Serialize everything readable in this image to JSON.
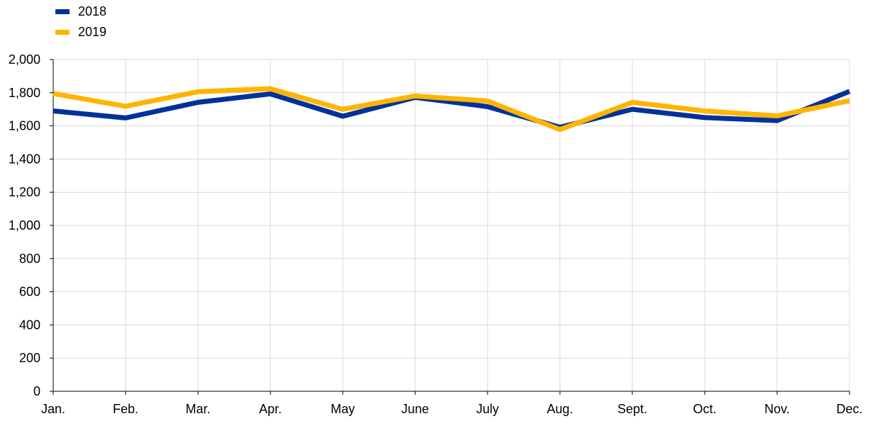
{
  "chart_data": {
    "type": "line",
    "title": "",
    "xlabel": "",
    "ylabel": "",
    "categories": [
      "Jan.",
      "Feb.",
      "Mar.",
      "Apr.",
      "May",
      "June",
      "July",
      "Aug.",
      "Sept.",
      "Oct.",
      "Nov.",
      "Dec."
    ],
    "ylim": [
      0,
      2000
    ],
    "yticks": [
      0,
      200,
      400,
      600,
      800,
      1000,
      1200,
      1400,
      1600,
      1800,
      2000
    ],
    "ytick_labels": [
      "0",
      "200",
      "400",
      "600",
      "800",
      "1,000",
      "1,200",
      "1,400",
      "1,600",
      "1,800",
      "2,000"
    ],
    "grid": true,
    "legend_position": "top-left",
    "series": [
      {
        "name": "2018",
        "color": "#003299",
        "values": [
          1690,
          1648,
          1742,
          1793,
          1658,
          1772,
          1716,
          1592,
          1700,
          1650,
          1632,
          1808
        ]
      },
      {
        "name": "2019",
        "color": "#FFB400",
        "values": [
          1795,
          1718,
          1806,
          1824,
          1700,
          1780,
          1750,
          1578,
          1742,
          1690,
          1660,
          1752
        ]
      }
    ]
  }
}
